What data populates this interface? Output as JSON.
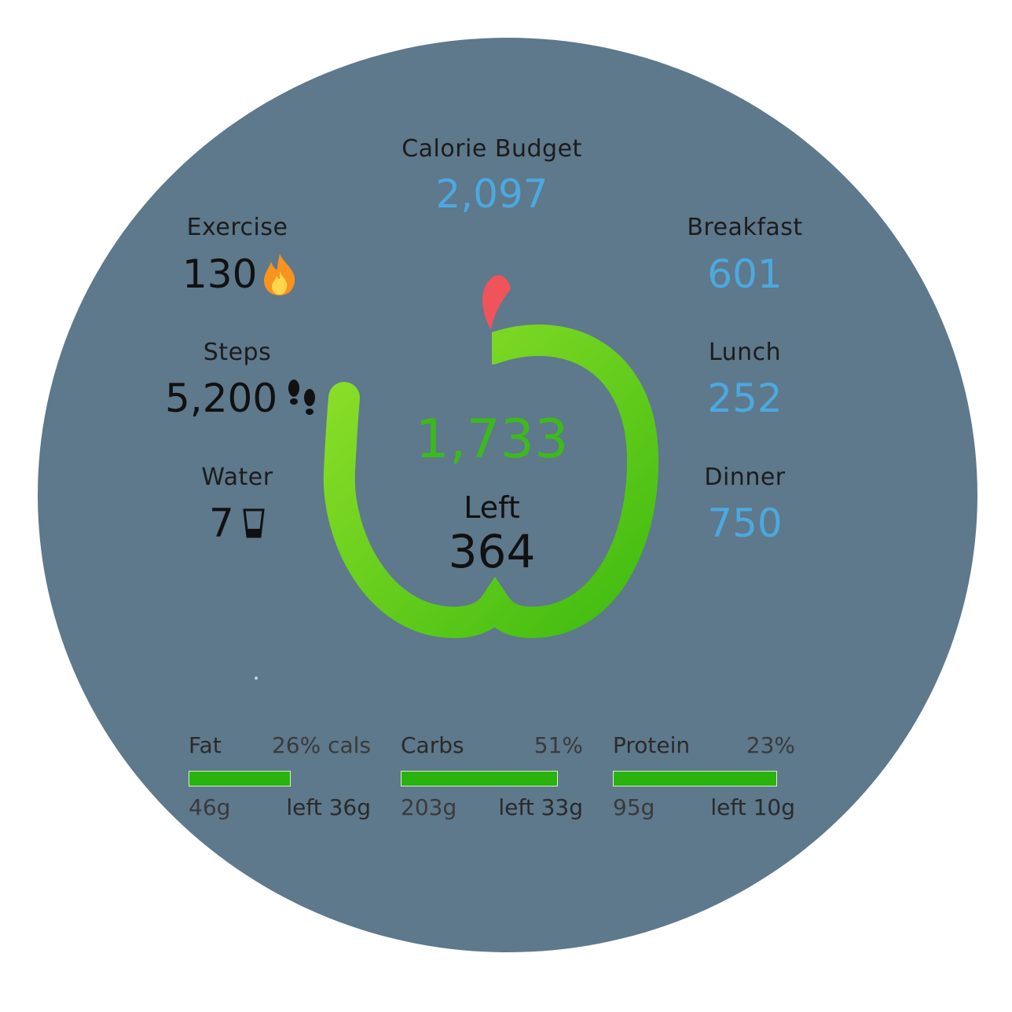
{
  "calorie_budget": {
    "label": "Calorie Budget",
    "value": "2,097"
  },
  "exercise": {
    "label": "Exercise",
    "value": "130",
    "icon": "flame-icon"
  },
  "steps": {
    "label": "Steps",
    "value": "5,200",
    "icon": "footprints-icon"
  },
  "water": {
    "label": "Water",
    "value": "7",
    "icon": "water-glass-icon"
  },
  "breakfast": {
    "label": "Breakfast",
    "value": "601"
  },
  "lunch": {
    "label": "Lunch",
    "value": "252"
  },
  "dinner": {
    "label": "Dinner",
    "value": "750"
  },
  "consumed": {
    "value": "1,733"
  },
  "remaining": {
    "label": "Left",
    "value": "364"
  },
  "progress": {
    "fraction": 0.83,
    "icon": "apple-progress-ring"
  },
  "macros": [
    {
      "name": "Fat",
      "percent": "26% cals",
      "grams": "46g",
      "left": "left 36g",
      "fill": 0.56
    },
    {
      "name": "Carbs",
      "percent": "51%",
      "grams": "203g",
      "left": "left 33g",
      "fill": 0.86
    },
    {
      "name": "Protein",
      "percent": "23%",
      "grams": "95g",
      "left": "left 10g",
      "fill": 0.9
    }
  ],
  "colors": {
    "background": "#5e788c",
    "accent_blue": "#4ba9e0",
    "accent_green": "#3cba1c",
    "bar_green": "#2ab20e",
    "stem_red": "#f0545a"
  }
}
